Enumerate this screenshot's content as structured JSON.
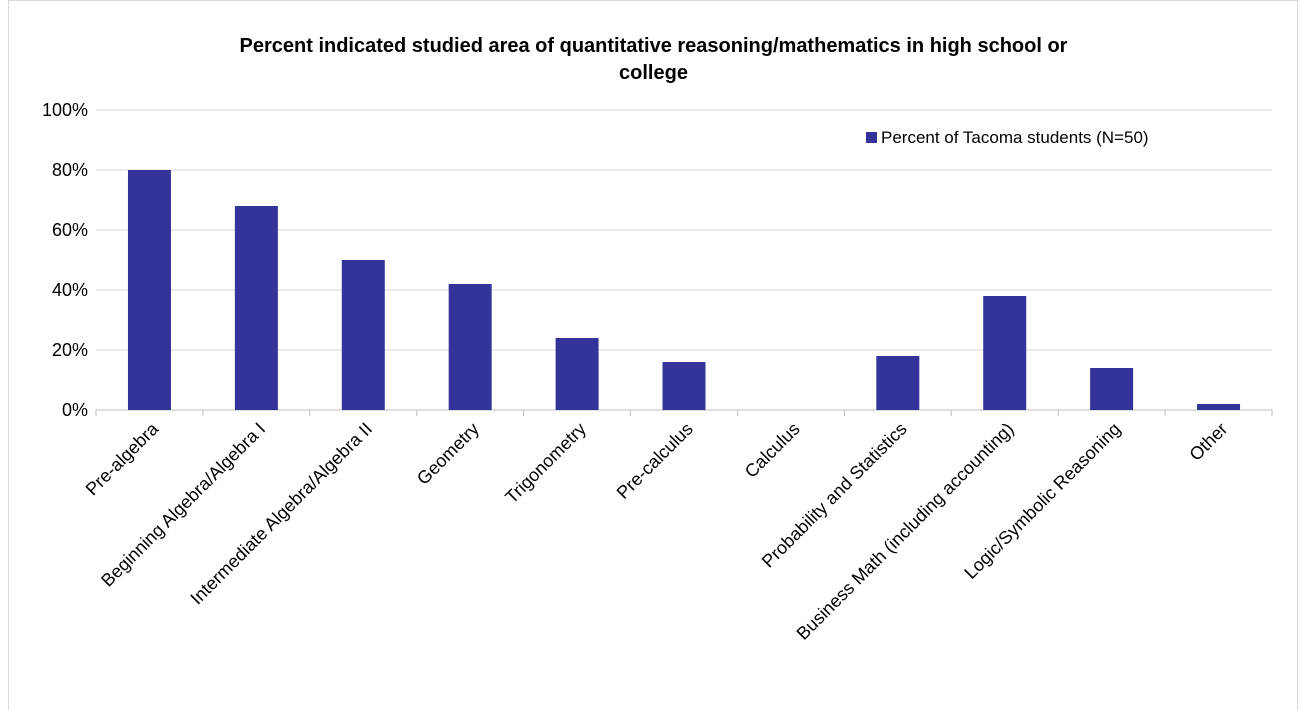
{
  "chart_data": {
    "type": "bar",
    "title_lines": [
      "Percent indicated studied area of quantitative reasoning/mathematics in high school or",
      "college"
    ],
    "categories": [
      "Pre-algebra",
      "Beginning Algebra/Algebra I",
      "Intermediate Algebra/Algebra II",
      "Geometry",
      "Trigonometry",
      "Pre-calculus",
      "Calculus",
      "Probability and Statistics",
      "Business Math (including accounting)",
      "Logic/Symbolic Reasoning",
      "Other"
    ],
    "series": [
      {
        "name": "Percent of Tacoma students (N=50)",
        "values": [
          80,
          68,
          50,
          42,
          24,
          16,
          0,
          18,
          38,
          14,
          2
        ],
        "color": "#333399"
      }
    ],
    "y_ticks": [
      "0%",
      "20%",
      "40%",
      "60%",
      "80%",
      "100%"
    ],
    "ylim": [
      0,
      100
    ],
    "grid": true,
    "legend_position": "top-right",
    "xlabel": "",
    "ylabel": ""
  }
}
